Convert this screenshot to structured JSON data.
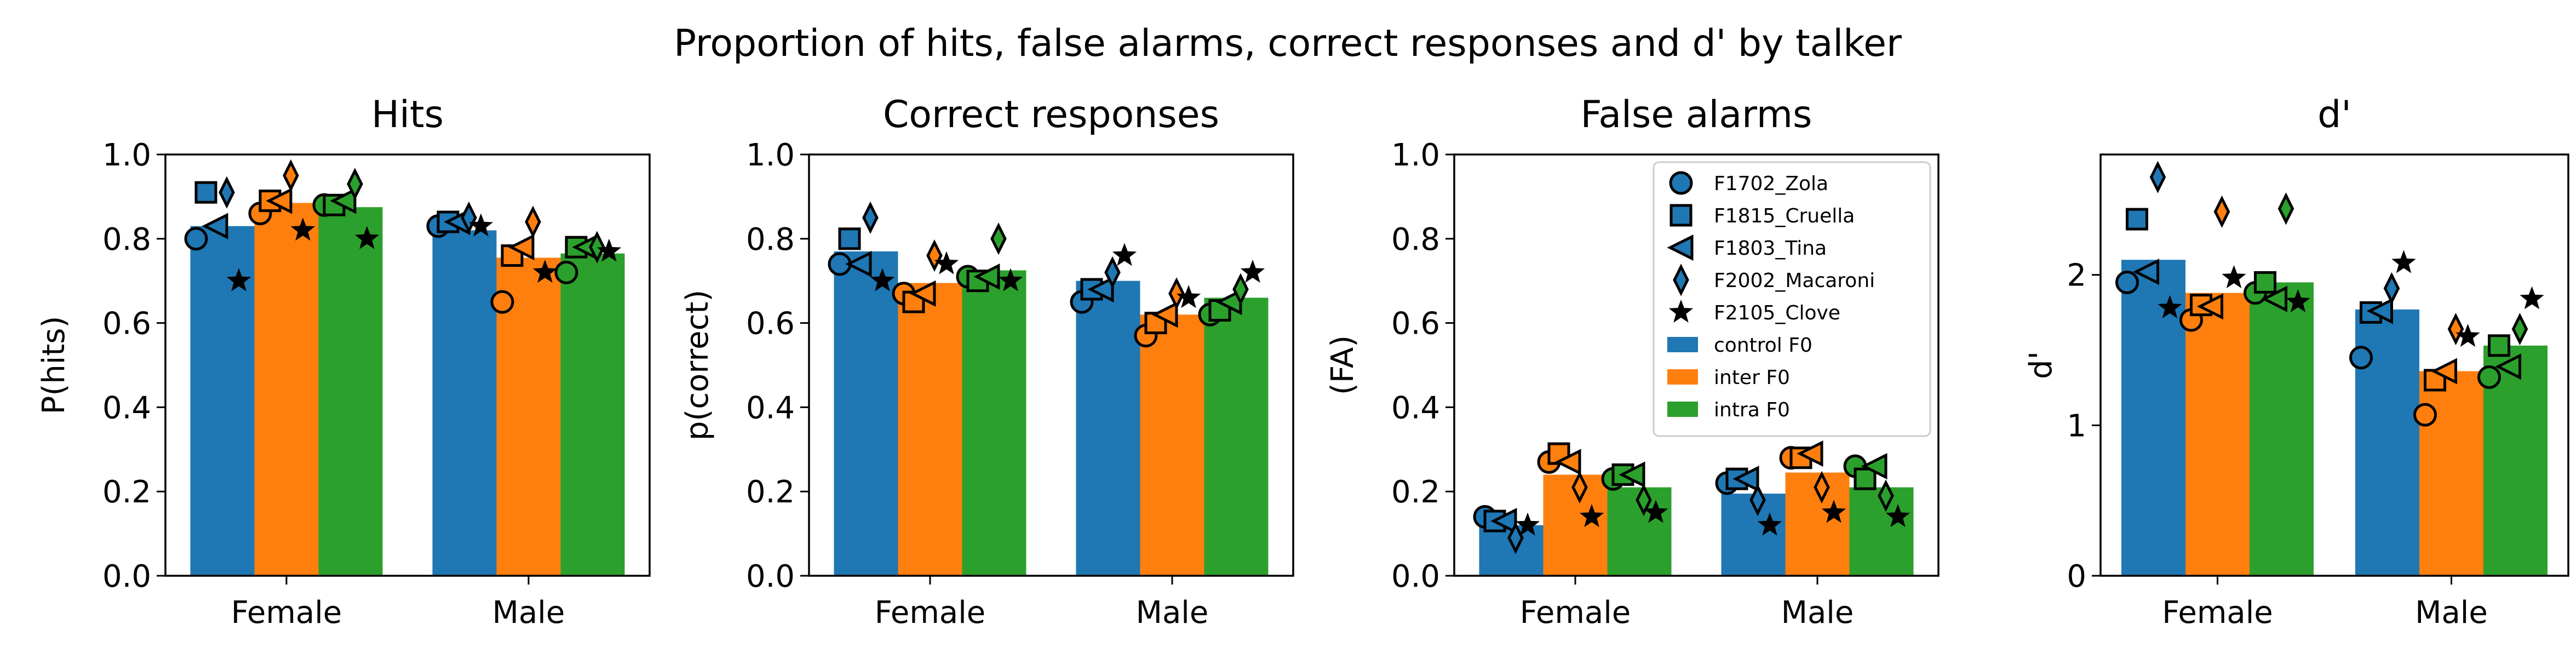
{
  "figure": {
    "title": "Proportion of hits, false alarms, correct responses and d' by talker"
  },
  "colors": {
    "control": "#1f77b4",
    "inter": "#ff7f0e",
    "intra": "#2ca02c"
  },
  "talkers": [
    {
      "label": "F1702_Zola",
      "marker": "circle"
    },
    {
      "label": "F1815_Cruella",
      "marker": "square"
    },
    {
      "label": "F1803_Tina",
      "marker": "triangle-left"
    },
    {
      "label": "F2002_Macaroni",
      "marker": "thin-diamond"
    },
    {
      "label": "F2105_Clove",
      "marker": "star"
    }
  ],
  "legend": {
    "placement": "upper-right",
    "panel": 2,
    "conditions": [
      "control F0",
      "inter F0",
      "intra F0"
    ]
  },
  "chart_data": [
    {
      "type": "bar",
      "title": "Hits",
      "ylabel": "P(hits)",
      "xlabel": "",
      "ylim": [
        0,
        1.0
      ],
      "yticks": [
        0.0,
        0.2,
        0.4,
        0.6,
        0.8,
        1.0
      ],
      "ytick_labels": [
        "0.0",
        "0.2",
        "0.4",
        "0.6",
        "0.8",
        "1.0"
      ],
      "categories": [
        "Female",
        "Male"
      ],
      "series": [
        {
          "name": "control F0",
          "values": [
            0.83,
            0.82
          ],
          "talkers": [
            [
              0.8,
              0.83
            ],
            [
              0.91,
              0.84
            ],
            [
              0.83,
              0.84
            ],
            [
              0.91,
              0.85
            ],
            [
              0.7,
              0.83
            ]
          ]
        },
        {
          "name": "inter F0",
          "values": [
            0.885,
            0.755
          ],
          "talkers": [
            [
              0.86,
              0.65
            ],
            [
              0.89,
              0.76
            ],
            [
              0.89,
              0.78
            ],
            [
              0.95,
              0.84
            ],
            [
              0.82,
              0.72
            ]
          ]
        },
        {
          "name": "intra F0",
          "values": [
            0.875,
            0.765
          ],
          "talkers": [
            [
              0.88,
              0.72
            ],
            [
              0.88,
              0.78
            ],
            [
              0.89,
              0.78
            ],
            [
              0.93,
              0.78
            ],
            [
              0.8,
              0.77
            ]
          ]
        }
      ]
    },
    {
      "type": "bar",
      "title": "Correct responses",
      "ylabel": "p(correct)",
      "xlabel": "",
      "ylim": [
        0,
        1.0
      ],
      "yticks": [
        0.0,
        0.2,
        0.4,
        0.6,
        0.8,
        1.0
      ],
      "ytick_labels": [
        "0.0",
        "0.2",
        "0.4",
        "0.6",
        "0.8",
        "1.0"
      ],
      "categories": [
        "Female",
        "Male"
      ],
      "series": [
        {
          "name": "control F0",
          "values": [
            0.77,
            0.7
          ],
          "talkers": [
            [
              0.74,
              0.65
            ],
            [
              0.8,
              0.68
            ],
            [
              0.74,
              0.68
            ],
            [
              0.85,
              0.72
            ],
            [
              0.7,
              0.76
            ]
          ]
        },
        {
          "name": "inter F0",
          "values": [
            0.695,
            0.62
          ],
          "talkers": [
            [
              0.67,
              0.57
            ],
            [
              0.65,
              0.6
            ],
            [
              0.67,
              0.62
            ],
            [
              0.76,
              0.67
            ],
            [
              0.74,
              0.66
            ]
          ]
        },
        {
          "name": "intra F0",
          "values": [
            0.725,
            0.66
          ],
          "talkers": [
            [
              0.71,
              0.62
            ],
            [
              0.7,
              0.63
            ],
            [
              0.71,
              0.65
            ],
            [
              0.8,
              0.68
            ],
            [
              0.7,
              0.72
            ]
          ]
        }
      ]
    },
    {
      "type": "bar",
      "title": "False alarms",
      "ylabel": "(FA)",
      "xlabel": "",
      "ylim": [
        0,
        1.0
      ],
      "yticks": [
        0.0,
        0.2,
        0.4,
        0.6,
        0.8,
        1.0
      ],
      "ytick_labels": [
        "0.0",
        "0.2",
        "0.4",
        "0.6",
        "0.8",
        "1.0"
      ],
      "categories": [
        "Female",
        "Male"
      ],
      "series": [
        {
          "name": "control F0",
          "values": [
            0.12,
            0.195
          ],
          "talkers": [
            [
              0.14,
              0.22
            ],
            [
              0.13,
              0.23
            ],
            [
              0.13,
              0.23
            ],
            [
              0.09,
              0.18
            ],
            [
              0.12,
              0.12
            ]
          ]
        },
        {
          "name": "inter F0",
          "values": [
            0.24,
            0.245
          ],
          "talkers": [
            [
              0.27,
              0.28
            ],
            [
              0.29,
              0.28
            ],
            [
              0.27,
              0.29
            ],
            [
              0.21,
              0.21
            ],
            [
              0.14,
              0.15
            ]
          ]
        },
        {
          "name": "intra F0",
          "values": [
            0.21,
            0.21
          ],
          "talkers": [
            [
              0.23,
              0.26
            ],
            [
              0.24,
              0.23
            ],
            [
              0.24,
              0.26
            ],
            [
              0.18,
              0.19
            ],
            [
              0.15,
              0.14
            ]
          ]
        }
      ]
    },
    {
      "type": "bar",
      "title": "d'",
      "ylabel": "d'",
      "xlabel": "",
      "ylim": [
        0,
        2.8
      ],
      "yticks": [
        0,
        1,
        2
      ],
      "ytick_labels": [
        "0",
        "1",
        "2"
      ],
      "categories": [
        "Female",
        "Male"
      ],
      "series": [
        {
          "name": "control F0",
          "values": [
            2.1,
            1.77
          ],
          "talkers": [
            [
              1.95,
              1.45
            ],
            [
              2.37,
              1.75
            ],
            [
              2.02,
              1.76
            ],
            [
              2.65,
              1.91
            ],
            [
              1.78,
              2.08
            ]
          ]
        },
        {
          "name": "inter F0",
          "values": [
            1.88,
            1.36
          ],
          "talkers": [
            [
              1.7,
              1.07
            ],
            [
              1.8,
              1.3
            ],
            [
              1.79,
              1.36
            ],
            [
              2.42,
              1.64
            ],
            [
              1.98,
              1.59
            ]
          ]
        },
        {
          "name": "intra F0",
          "values": [
            1.95,
            1.53
          ],
          "talkers": [
            [
              1.88,
              1.32
            ],
            [
              1.95,
              1.53
            ],
            [
              1.84,
              1.39
            ],
            [
              2.44,
              1.64
            ],
            [
              1.82,
              1.84
            ]
          ]
        }
      ]
    }
  ]
}
